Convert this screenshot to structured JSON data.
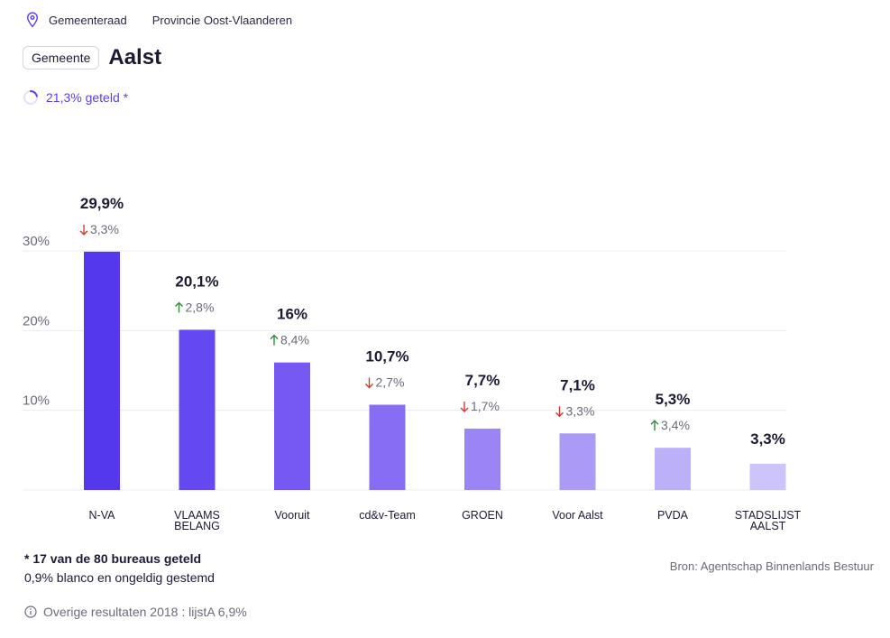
{
  "breadcrumb": {
    "items": [
      "Gemeenteraad",
      "Provincie Oost-Vlaanderen"
    ]
  },
  "header": {
    "badge": "Gemeente",
    "title": "Aalst"
  },
  "progress": {
    "label": "21,3% geteld *",
    "fraction": 0.213
  },
  "colors": {
    "accent": "#5b3df0",
    "up": "#2e8b3a",
    "down": "#d13a2f"
  },
  "chart_data": {
    "type": "bar",
    "title": "",
    "xlabel": "",
    "ylabel": "",
    "ylim": [
      0,
      30
    ],
    "yticks": [
      {
        "value": 10,
        "label": "10%"
      },
      {
        "value": 20,
        "label": "20%"
      },
      {
        "value": 30,
        "label": "30%"
      }
    ],
    "grid": true,
    "bars": [
      {
        "category": [
          "N-VA"
        ],
        "value": 29.9,
        "label": "29,9%",
        "change": "3,3%",
        "direction": "down",
        "color": "#5438ee"
      },
      {
        "category": [
          "VLAAMS",
          "BELANG"
        ],
        "value": 20.1,
        "label": "20,1%",
        "change": "2,8%",
        "direction": "up",
        "color": "#6448f0"
      },
      {
        "category": [
          "Vooruit"
        ],
        "value": 16,
        "label": "16%",
        "change": "8,4%",
        "direction": "up",
        "color": "#7559f2"
      },
      {
        "category": [
          "cd&v-Team"
        ],
        "value": 10.7,
        "label": "10,7%",
        "change": "2,7%",
        "direction": "down",
        "color": "#876df4"
      },
      {
        "category": [
          "GROEN"
        ],
        "value": 7.7,
        "label": "7,7%",
        "change": "1,7%",
        "direction": "down",
        "color": "#9a84f6"
      },
      {
        "category": [
          "Voor Aalst"
        ],
        "value": 7.1,
        "label": "7,1%",
        "change": "3,3%",
        "direction": "down",
        "color": "#ab9bf7"
      },
      {
        "category": [
          "PVDA"
        ],
        "value": 5.3,
        "label": "5,3%",
        "change": "3,4%",
        "direction": "up",
        "color": "#bcb0f9"
      },
      {
        "category": [
          "STADSLIJST",
          "AALST"
        ],
        "value": 3.3,
        "label": "3,3%",
        "change": "",
        "direction": "",
        "color": "#cdc4fb"
      }
    ]
  },
  "footer": {
    "counted": "* 17 van de 80 bureaus geteld",
    "blank": "0,9% blanco en ongeldig gestemd",
    "source": "Bron: Agentschap Binnenlands Bestuur",
    "other_results": "Overige resultaten 2018 : lijstA 6,9%"
  }
}
